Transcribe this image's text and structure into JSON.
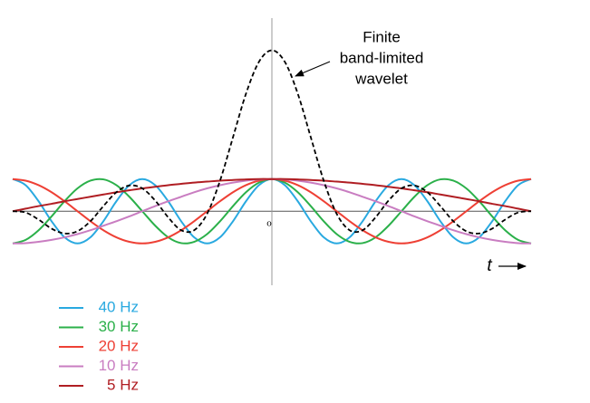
{
  "chart_data": {
    "type": "line",
    "annotation": [
      "Finite",
      "band-limited",
      "wavelet"
    ],
    "x_label": "t",
    "origin_label": "o",
    "xlim": [
      -50,
      50
    ],
    "ylim": [
      -2.3,
      6
    ],
    "x": [
      -50,
      -47.5,
      -45,
      -42.5,
      -40,
      -37.5,
      -35,
      -32.5,
      -30,
      -27.5,
      -25,
      -22.5,
      -20,
      -17.5,
      -15,
      -12.5,
      -10,
      -7.5,
      -5,
      -2.5,
      0,
      2.5,
      5,
      7.5,
      10,
      12.5,
      15,
      17.5,
      20,
      22.5,
      25,
      27.5,
      30,
      32.5,
      35,
      37.5,
      40,
      42.5,
      45,
      47.5,
      50
    ],
    "series": [
      {
        "name": "40 Hz",
        "color": "#29a9e0",
        "values": [
          1,
          0.81,
          0.31,
          -0.31,
          -0.81,
          -1,
          -0.81,
          -0.31,
          0.31,
          0.81,
          1,
          0.81,
          0.31,
          -0.31,
          -0.81,
          -1,
          -0.81,
          -0.31,
          0.31,
          0.81,
          1,
          0.81,
          0.31,
          -0.31,
          -0.81,
          -1,
          -0.81,
          -0.31,
          0.31,
          0.81,
          1,
          0.81,
          0.31,
          -0.31,
          -0.81,
          -1,
          -0.81,
          -0.31,
          0.31,
          0.81,
          1
        ]
      },
      {
        "name": "30 Hz",
        "color": "#2bb04a",
        "values": [
          -1,
          -0.89,
          -0.59,
          -0.16,
          0.31,
          0.71,
          0.95,
          0.99,
          0.81,
          0.45,
          0,
          -0.45,
          -0.81,
          -0.99,
          -0.95,
          -0.71,
          -0.31,
          0.16,
          0.59,
          0.89,
          1,
          0.89,
          0.59,
          0.16,
          -0.31,
          -0.71,
          -0.95,
          -0.99,
          -0.81,
          -0.45,
          0,
          0.45,
          0.81,
          0.99,
          0.95,
          0.71,
          0.31,
          -0.16,
          -0.59,
          -0.89,
          -1
        ]
      },
      {
        "name": "20 Hz",
        "color": "#ee4035",
        "values": [
          1,
          0.95,
          0.81,
          0.59,
          0.31,
          0,
          -0.31,
          -0.59,
          -0.81,
          -0.95,
          -1,
          -0.95,
          -0.81,
          -0.59,
          -0.31,
          0,
          0.31,
          0.59,
          0.81,
          0.95,
          1,
          0.95,
          0.81,
          0.59,
          0.31,
          0,
          -0.31,
          -0.59,
          -0.81,
          -0.95,
          -1,
          -0.95,
          -0.81,
          -0.59,
          -0.31,
          0,
          0.31,
          0.59,
          0.81,
          0.95,
          1
        ]
      },
      {
        "name": "10 Hz",
        "color": "#c97dc1",
        "values": [
          -1,
          -0.99,
          -0.95,
          -0.89,
          -0.81,
          -0.71,
          -0.59,
          -0.45,
          -0.31,
          -0.16,
          0,
          0.16,
          0.31,
          0.45,
          0.59,
          0.71,
          0.81,
          0.89,
          0.95,
          0.99,
          1,
          0.99,
          0.95,
          0.89,
          0.81,
          0.71,
          0.59,
          0.45,
          0.31,
          0.16,
          0,
          -0.16,
          -0.31,
          -0.45,
          -0.59,
          -0.71,
          -0.81,
          -0.89,
          -0.95,
          -0.99,
          -1
        ]
      },
      {
        "name": "5 Hz",
        "color": "#b01e23",
        "values": [
          0,
          0.08,
          0.16,
          0.23,
          0.31,
          0.38,
          0.45,
          0.52,
          0.59,
          0.65,
          0.71,
          0.76,
          0.81,
          0.85,
          0.89,
          0.92,
          0.95,
          0.97,
          0.99,
          1,
          1,
          1,
          0.99,
          0.97,
          0.95,
          0.92,
          0.89,
          0.85,
          0.81,
          0.76,
          0.71,
          0.65,
          0.59,
          0.52,
          0.45,
          0.38,
          0.31,
          0.23,
          0.16,
          0.08,
          0
        ]
      }
    ],
    "wavelet": {
      "color": "#000000",
      "dashed": true,
      "values": [
        0,
        -0.04,
        -0.26,
        -0.54,
        -0.69,
        -0.62,
        -0.31,
        0.16,
        0.59,
        0.8,
        0.71,
        0.33,
        -0.19,
        -0.59,
        -0.59,
        -0.08,
        0.95,
        2.3,
        3.65,
        4.64,
        5,
        4.64,
        3.65,
        2.3,
        0.95,
        -0.08,
        -0.59,
        -0.59,
        -0.19,
        0.33,
        0.71,
        0.8,
        0.59,
        0.16,
        -0.31,
        -0.62,
        -0.69,
        -0.54,
        -0.26,
        -0.04,
        0
      ]
    }
  }
}
